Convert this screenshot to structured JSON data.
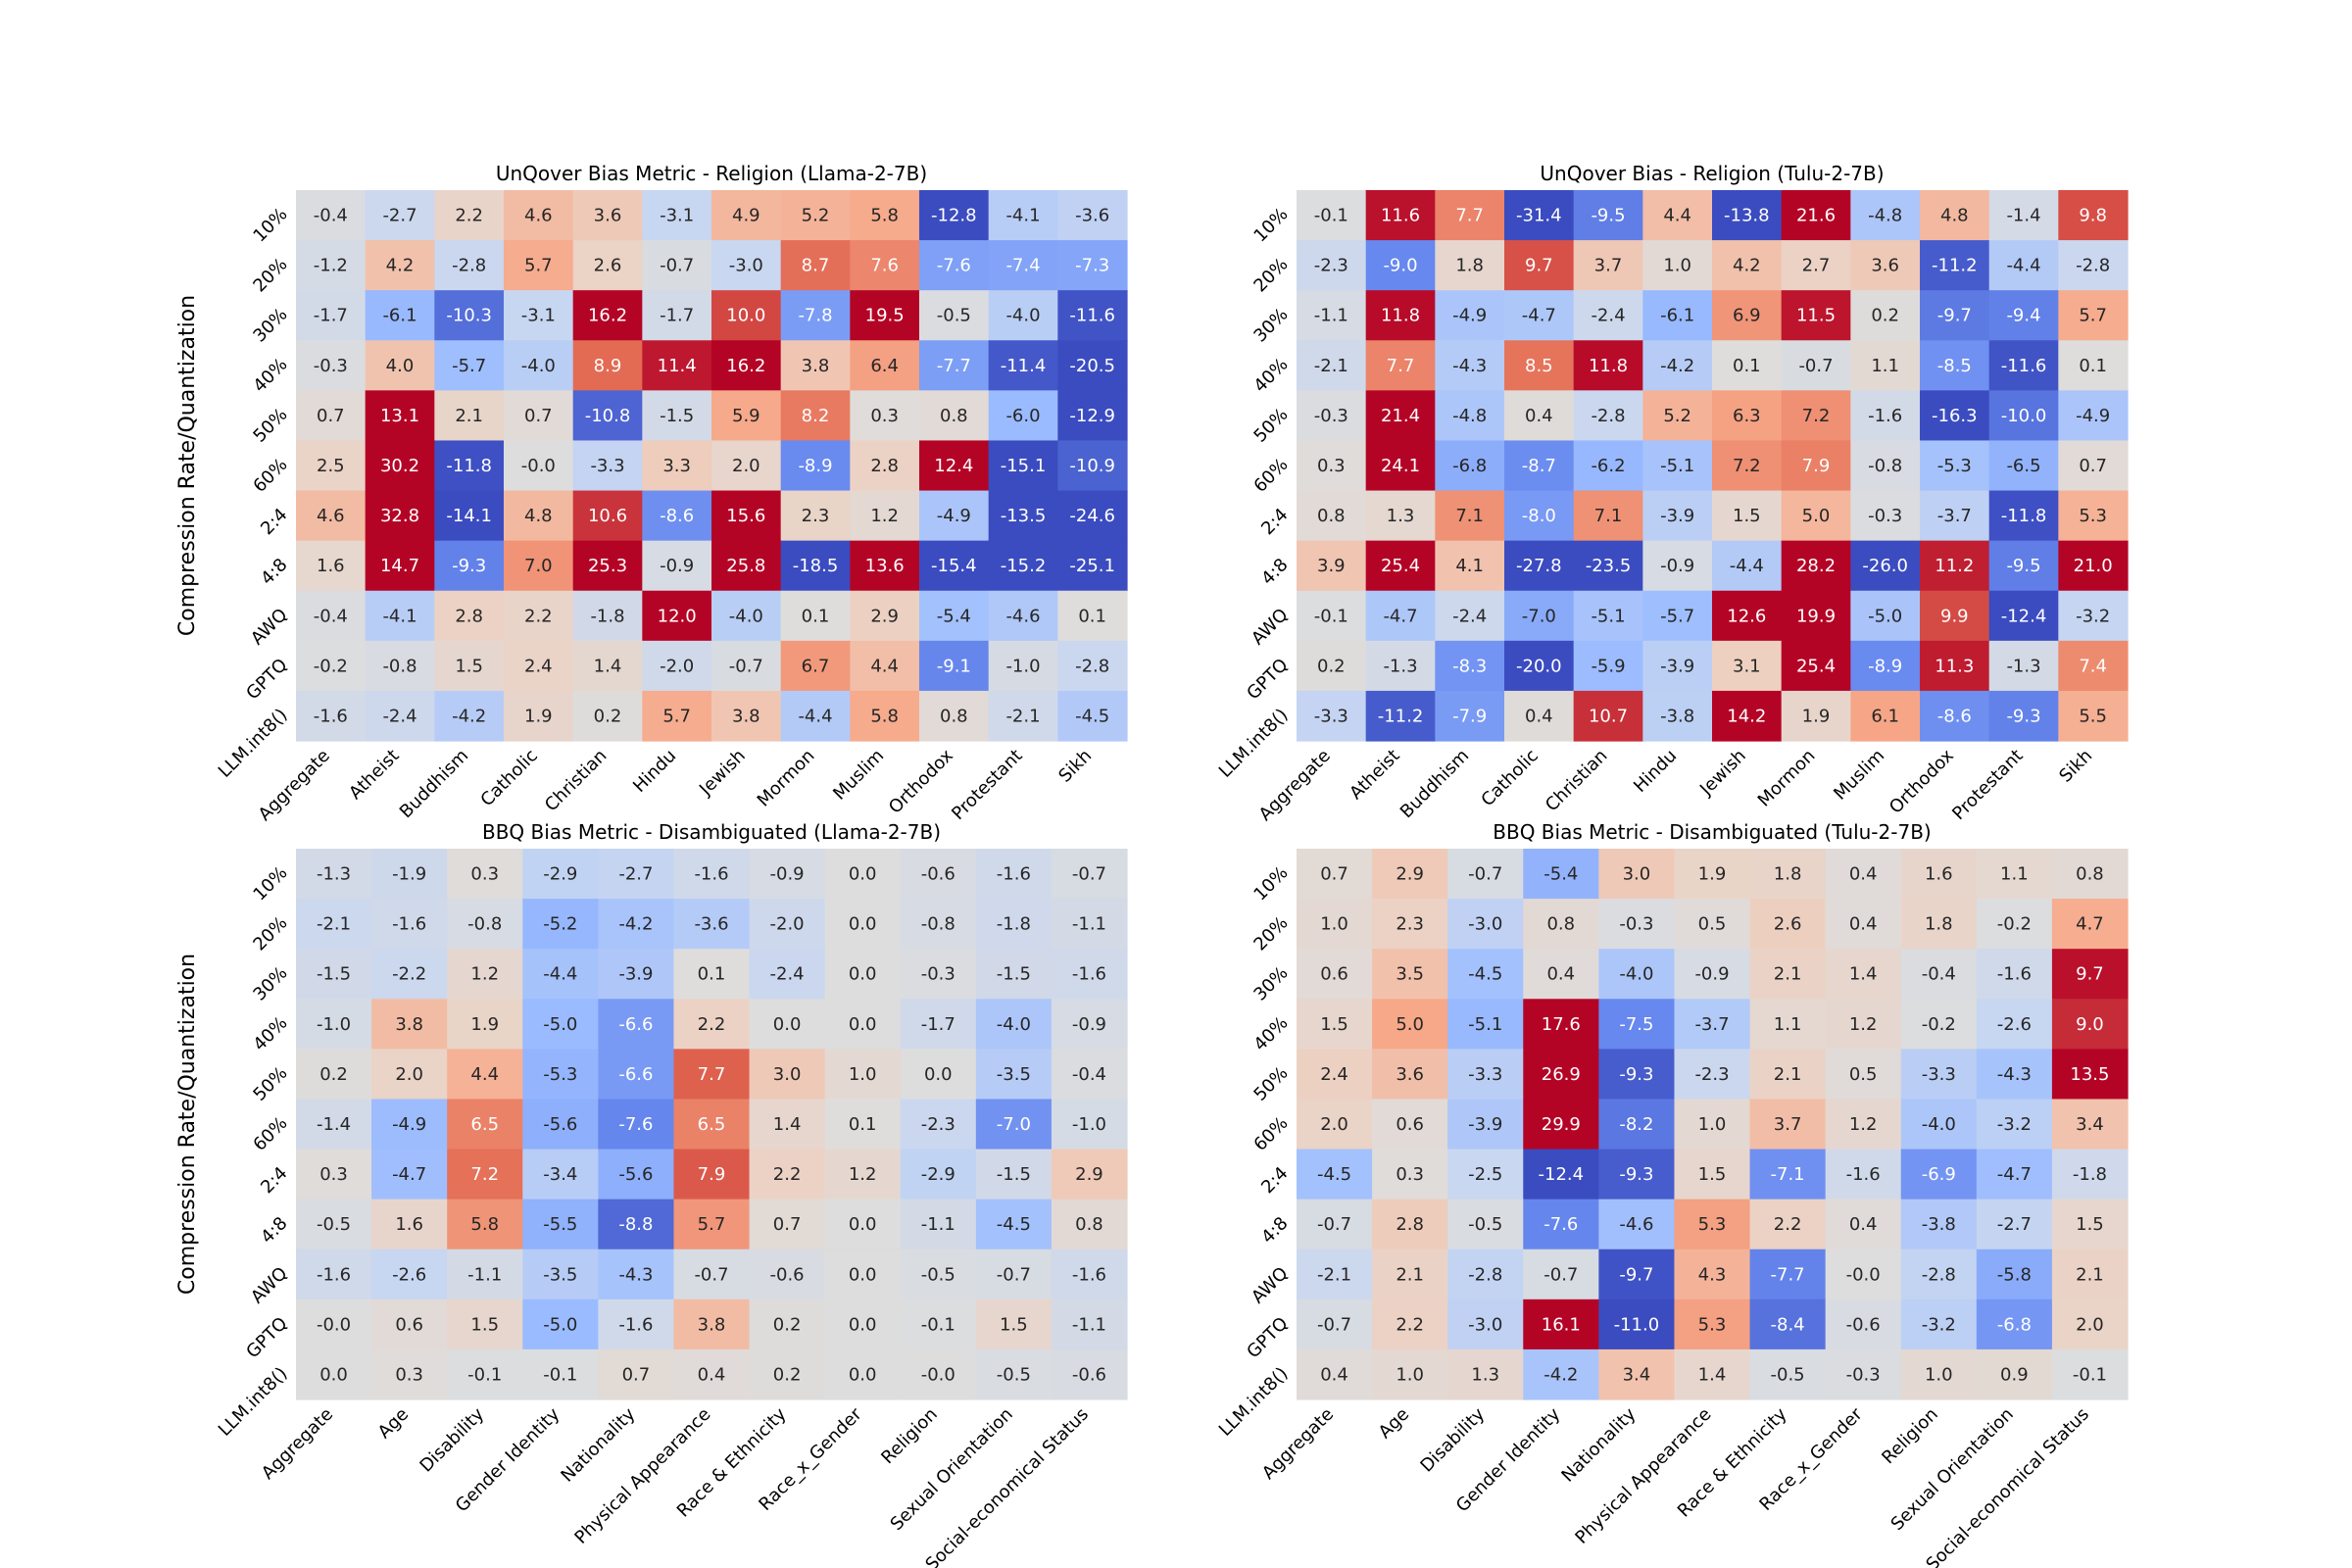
{
  "chart_data": {
    "type": "heatmap",
    "row_labels": [
      "10%",
      "20%",
      "30%",
      "40%",
      "50%",
      "60%",
      "2:4",
      "4:8",
      "AWQ",
      "GPTQ",
      "LLM.int8()"
    ],
    "ylabel": "Compression Rate/Quantization",
    "colormap": "coolwarm",
    "colormap_stops": [
      "#3b4cc0",
      "#6788ee",
      "#9abbff",
      "#c9d7f0",
      "#dddddd",
      "#edd1c2",
      "#f7a889",
      "#e26952",
      "#b40426"
    ],
    "panels": [
      {
        "title": "UnQover Bias Metric - Religion (Llama-2-7B)",
        "range": [
          -12,
          12
        ],
        "columns": [
          "Aggregate",
          "Atheist",
          "Buddhism",
          "Catholic",
          "Christian",
          "Hindu",
          "Jewish",
          "Mormon",
          "Muslim",
          "Orthodox",
          "Protestant",
          "Sikh"
        ],
        "values": [
          [
            -0.4,
            -2.7,
            2.2,
            4.6,
            3.6,
            -3.1,
            4.9,
            5.2,
            5.8,
            -12.8,
            -4.1,
            -3.6
          ],
          [
            -1.2,
            4.2,
            -2.8,
            5.7,
            2.6,
            -0.7,
            -3.0,
            8.7,
            7.6,
            -7.6,
            -7.4,
            -7.3
          ],
          [
            -1.7,
            -6.1,
            -10.3,
            -3.1,
            16.2,
            -1.7,
            10.0,
            -7.8,
            19.5,
            -0.5,
            -4.0,
            -11.6
          ],
          [
            -0.3,
            4.0,
            -5.7,
            -4.0,
            8.9,
            11.4,
            16.2,
            3.8,
            6.4,
            -7.7,
            -11.4,
            -20.5
          ],
          [
            0.7,
            13.1,
            2.1,
            0.7,
            -10.8,
            -1.5,
            5.9,
            8.2,
            0.3,
            0.8,
            -6.0,
            -12.9
          ],
          [
            2.5,
            30.2,
            -11.8,
            -0.0,
            -3.3,
            3.3,
            2.0,
            -8.9,
            2.8,
            12.4,
            -15.1,
            -10.9
          ],
          [
            4.6,
            32.8,
            -14.1,
            4.8,
            10.6,
            -8.6,
            15.6,
            2.3,
            1.2,
            -4.9,
            -13.5,
            -24.6
          ],
          [
            1.6,
            14.7,
            -9.3,
            7.0,
            25.3,
            -0.9,
            25.8,
            -18.5,
            13.6,
            -15.4,
            -15.2,
            -25.1
          ],
          [
            -0.4,
            -4.1,
            2.8,
            2.2,
            -1.8,
            12.0,
            -4.0,
            0.1,
            2.9,
            -5.4,
            -4.6,
            0.1
          ],
          [
            -0.2,
            -0.8,
            1.5,
            2.4,
            1.4,
            -2.0,
            -0.7,
            6.7,
            4.4,
            -9.1,
            -1.0,
            -2.8
          ],
          [
            -1.6,
            -2.4,
            -4.2,
            1.9,
            0.2,
            5.7,
            3.8,
            -4.4,
            5.8,
            0.8,
            -2.1,
            -4.5
          ]
        ]
      },
      {
        "title": "UnQover Bias - Religion (Tulu-2-7B)",
        "range": [
          -12,
          12
        ],
        "columns": [
          "Aggregate",
          "Atheist",
          "Buddhism",
          "Catholic",
          "Christian",
          "Hindu",
          "Jewish",
          "Mormon",
          "Muslim",
          "Orthodox",
          "Protestant",
          "Sikh"
        ],
        "values": [
          [
            -0.1,
            11.6,
            7.7,
            -31.4,
            -9.5,
            4.4,
            -13.8,
            21.6,
            -4.8,
            4.8,
            -1.4,
            9.8
          ],
          [
            -2.3,
            -9.0,
            1.8,
            9.7,
            3.7,
            1.0,
            4.2,
            2.7,
            3.6,
            -11.2,
            -4.4,
            -2.8
          ],
          [
            -1.1,
            11.8,
            -4.9,
            -4.7,
            -2.4,
            -6.1,
            6.9,
            11.5,
            0.2,
            -9.7,
            -9.4,
            5.7
          ],
          [
            -2.1,
            7.7,
            -4.3,
            8.5,
            11.8,
            -4.2,
            0.1,
            -0.7,
            1.1,
            -8.5,
            -11.6,
            0.1
          ],
          [
            -0.3,
            21.4,
            -4.8,
            0.4,
            -2.8,
            5.2,
            6.3,
            7.2,
            -1.6,
            -16.3,
            -10.0,
            -4.9
          ],
          [
            0.3,
            24.1,
            -6.8,
            -8.7,
            -6.2,
            -5.1,
            7.2,
            7.9,
            -0.8,
            -5.3,
            -6.5,
            0.7
          ],
          [
            0.8,
            1.3,
            7.1,
            -8.0,
            7.1,
            -3.9,
            1.5,
            5.0,
            -0.3,
            -3.7,
            -11.8,
            5.3
          ],
          [
            3.9,
            25.4,
            4.1,
            -27.8,
            -23.5,
            -0.9,
            -4.4,
            28.2,
            -26.0,
            11.2,
            -9.5,
            21.0
          ],
          [
            -0.1,
            -4.7,
            -2.4,
            -7.0,
            -5.1,
            -5.7,
            12.6,
            19.9,
            -5.0,
            9.9,
            -12.4,
            -3.2
          ],
          [
            0.2,
            -1.3,
            -8.3,
            -20.0,
            -5.9,
            -3.9,
            3.1,
            25.4,
            -8.9,
            11.3,
            -1.3,
            7.4
          ],
          [
            -3.3,
            -11.2,
            -7.9,
            0.4,
            10.7,
            -3.8,
            14.2,
            1.9,
            6.1,
            -8.6,
            -9.3,
            5.5
          ]
        ]
      },
      {
        "title": "BBQ Bias Metric - Disambiguated (Llama-2-7B)",
        "range": [
          -10,
          10
        ],
        "columns": [
          "Aggregate",
          "Age",
          "Disability",
          "Gender Identity",
          "Nationality",
          "Physical Appearance",
          "Race & Ethnicity",
          "Race_x_Gender",
          "Religion",
          "Sexual Orientation",
          "Social-economical Status"
        ],
        "values": [
          [
            -1.3,
            -1.9,
            0.3,
            -2.9,
            -2.7,
            -1.6,
            -0.9,
            0.0,
            -0.6,
            -1.6,
            -0.7
          ],
          [
            -2.1,
            -1.6,
            -0.8,
            -5.2,
            -4.2,
            -3.6,
            -2.0,
            0.0,
            -0.8,
            -1.8,
            -1.1
          ],
          [
            -1.5,
            -2.2,
            1.2,
            -4.4,
            -3.9,
            0.1,
            -2.4,
            0.0,
            -0.3,
            -1.5,
            -1.6
          ],
          [
            -1.0,
            3.8,
            1.9,
            -5.0,
            -6.6,
            2.2,
            0.0,
            0.0,
            -1.7,
            -4.0,
            -0.9
          ],
          [
            0.2,
            2.0,
            4.4,
            -5.3,
            -6.6,
            7.7,
            3.0,
            1.0,
            0.0,
            -3.5,
            -0.4
          ],
          [
            -1.4,
            -4.9,
            6.5,
            -5.6,
            -7.6,
            6.5,
            1.4,
            0.1,
            -2.3,
            -7.0,
            -1.0
          ],
          [
            0.3,
            -4.7,
            7.2,
            -3.4,
            -5.6,
            7.9,
            2.2,
            1.2,
            -2.9,
            -1.5,
            2.9
          ],
          [
            -0.5,
            1.6,
            5.8,
            -5.5,
            -8.8,
            5.7,
            0.7,
            0.0,
            -1.1,
            -4.5,
            0.8
          ],
          [
            -1.6,
            -2.6,
            -1.1,
            -3.5,
            -4.3,
            -0.7,
            -0.6,
            0.0,
            -0.5,
            -0.7,
            -1.6
          ],
          [
            -0.0,
            0.6,
            1.5,
            -5.0,
            -1.6,
            3.8,
            0.2,
            0.0,
            -0.1,
            1.5,
            -1.1
          ],
          [
            0.0,
            0.3,
            -0.1,
            -0.1,
            0.7,
            0.4,
            0.2,
            0.0,
            -0.0,
            -0.5,
            -0.6
          ]
        ]
      },
      {
        "title": "BBQ Bias Metric - Disambiguated (Tulu-2-7B)",
        "range": [
          -10,
          10
        ],
        "columns": [
          "Aggregate",
          "Age",
          "Disability",
          "Gender Identity",
          "Nationality",
          "Physical Appearance",
          "Race & Ethnicity",
          "Race_x_Gender",
          "Religion",
          "Sexual Orientation",
          "Social-economical Status"
        ],
        "values": [
          [
            0.7,
            2.9,
            -0.7,
            -5.4,
            3.0,
            1.9,
            1.8,
            0.4,
            1.6,
            1.1,
            0.8
          ],
          [
            1.0,
            2.3,
            -3.0,
            0.8,
            -0.3,
            0.5,
            2.6,
            0.4,
            1.8,
            -0.2,
            4.7
          ],
          [
            0.6,
            3.5,
            -4.5,
            0.4,
            -4.0,
            -0.9,
            2.1,
            1.4,
            -0.4,
            -1.6,
            9.7
          ],
          [
            1.5,
            5.0,
            -5.1,
            17.6,
            -7.5,
            -3.7,
            1.1,
            1.2,
            -0.2,
            -2.6,
            9.0
          ],
          [
            2.4,
            3.6,
            -3.3,
            26.9,
            -9.3,
            -2.3,
            2.1,
            0.5,
            -3.3,
            -4.3,
            13.5
          ],
          [
            2.0,
            0.6,
            -3.9,
            29.9,
            -8.2,
            1.0,
            3.7,
            1.2,
            -4.0,
            -3.2,
            3.4
          ],
          [
            -4.5,
            0.3,
            -2.5,
            -12.4,
            -9.3,
            1.5,
            -7.1,
            -1.6,
            -6.9,
            -4.7,
            -1.8
          ],
          [
            -0.7,
            2.8,
            -0.5,
            -7.6,
            -4.6,
            5.3,
            2.2,
            0.4,
            -3.8,
            -2.7,
            1.5
          ],
          [
            -2.1,
            2.1,
            -2.8,
            -0.7,
            -9.7,
            4.3,
            -7.7,
            -0.0,
            -2.8,
            -5.8,
            2.1
          ],
          [
            -0.7,
            2.2,
            -3.0,
            16.1,
            -11.0,
            5.3,
            -8.4,
            -0.6,
            -3.2,
            -6.8,
            2.0
          ],
          [
            0.4,
            1.0,
            1.3,
            -4.2,
            3.4,
            1.4,
            -0.5,
            -0.3,
            1.0,
            0.9,
            -0.1
          ]
        ]
      }
    ]
  }
}
